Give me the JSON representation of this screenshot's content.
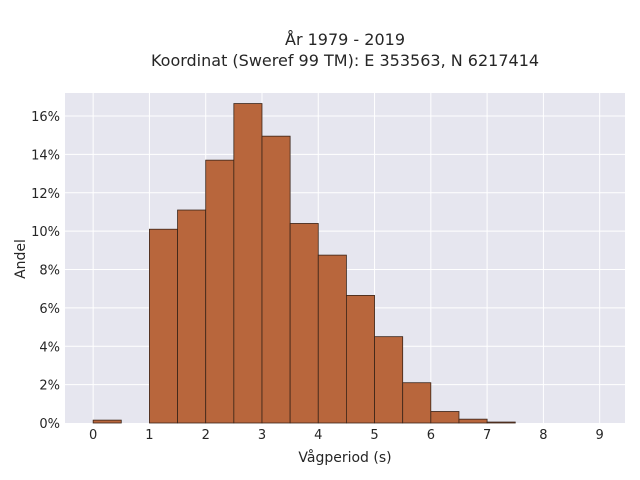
{
  "chart_data": {
    "type": "bar",
    "title": "År 1979 - 2019",
    "subtitle": "Koordinat (Sweref 99 TM): E 353563, N 6217414",
    "xlabel": "Vågperiod (s)",
    "ylabel": "Andel",
    "xlim": [
      -0.5,
      9.45
    ],
    "ylim": [
      0,
      17.2
    ],
    "x_ticks": [
      0,
      1,
      2,
      3,
      4,
      5,
      6,
      7,
      8,
      9
    ],
    "y_ticks": [
      0,
      2,
      4,
      6,
      8,
      10,
      12,
      14,
      16
    ],
    "y_tick_suffix": "%",
    "bin_width": 0.5,
    "bins": [
      {
        "start": 0.0,
        "value": 0.15
      },
      {
        "start": 0.5,
        "value": 0.0
      },
      {
        "start": 1.0,
        "value": 10.1
      },
      {
        "start": 1.5,
        "value": 11.1
      },
      {
        "start": 2.0,
        "value": 13.7
      },
      {
        "start": 2.5,
        "value": 16.65
      },
      {
        "start": 3.0,
        "value": 14.95
      },
      {
        "start": 3.5,
        "value": 10.4
      },
      {
        "start": 4.0,
        "value": 8.75
      },
      {
        "start": 4.5,
        "value": 6.65
      },
      {
        "start": 5.0,
        "value": 4.5
      },
      {
        "start": 5.5,
        "value": 2.1
      },
      {
        "start": 6.0,
        "value": 0.6
      },
      {
        "start": 6.5,
        "value": 0.2
      },
      {
        "start": 7.0,
        "value": 0.05
      }
    ],
    "grid": true,
    "colors": {
      "bar_fill": "#b8663c",
      "bar_edge": "#3a2418",
      "plot_background": "#e6e6ef",
      "grid": "#ffffff"
    }
  }
}
